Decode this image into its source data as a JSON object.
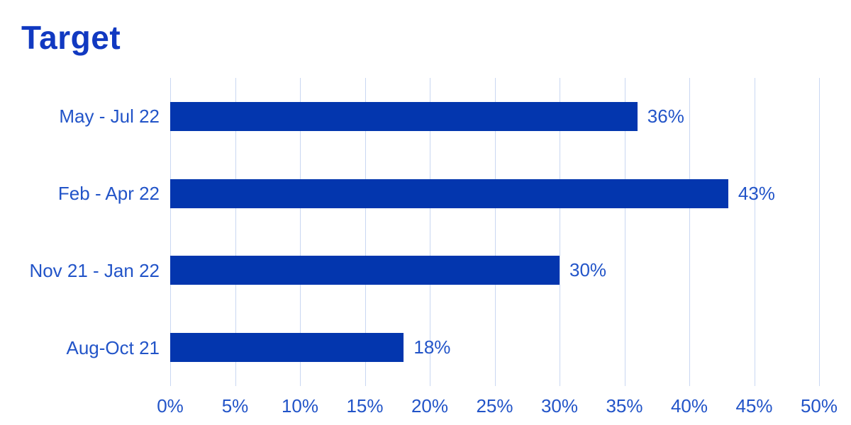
{
  "title": "Target",
  "colors": {
    "bar": "#0336AE",
    "title": "#1139C1",
    "text": "#2254C8",
    "gridline": "#C9D7F2",
    "background": "#FFFFFF"
  },
  "chart_data": {
    "type": "bar",
    "orientation": "horizontal",
    "title": "Target",
    "categories": [
      "May - Jul 22",
      "Feb - Apr 22",
      "Nov 21 - Jan 22",
      "Aug-Oct 21"
    ],
    "values": [
      36,
      43,
      30,
      18
    ],
    "value_labels": [
      "36%",
      "43%",
      "30%",
      "18%"
    ],
    "xlabel": "",
    "ylabel": "",
    "xlim": [
      0,
      50
    ],
    "x_tick_values": [
      0,
      5,
      10,
      15,
      20,
      25,
      30,
      35,
      40,
      45,
      50
    ],
    "x_tick_labels": [
      "0%",
      "5%",
      "10%",
      "15%",
      "20%",
      "25%",
      "30%",
      "35%",
      "40%",
      "45%",
      "50%"
    ],
    "grid": "vertical",
    "legend": "none"
  }
}
